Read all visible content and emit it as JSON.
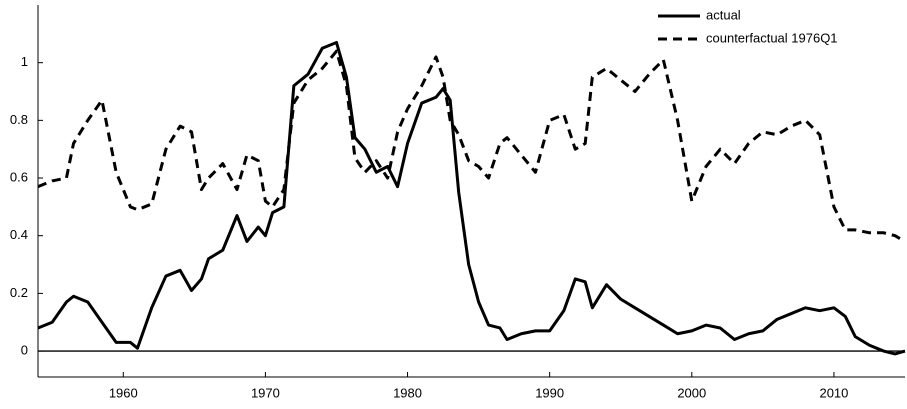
{
  "chart_data": {
    "type": "line",
    "x": [
      1954,
      1955,
      1956,
      1956.5,
      1957.5,
      1958.5,
      1959.5,
      1960.5,
      1961,
      1962,
      1963,
      1964,
      1964.8,
      1965.5,
      1966,
      1967,
      1968,
      1968.7,
      1969.5,
      1970,
      1970.5,
      1971.3,
      1972,
      1973,
      1974,
      1975,
      1975.7,
      1976.3,
      1977,
      1977.8,
      1978.6,
      1979.3,
      1980,
      1981,
      1982,
      1982.5,
      1983,
      1983.6,
      1984.3,
      1985,
      1985.7,
      1986.5,
      1987,
      1988,
      1989,
      1990,
      1991,
      1991.8,
      1992.5,
      1993,
      1994,
      1995,
      1996,
      1997,
      1998,
      1999,
      2000,
      2001,
      2002,
      2003,
      2004,
      2005,
      2006,
      2007,
      2008,
      2009,
      2010,
      2010.8,
      2011.5,
      2012.5,
      2013.5,
      2014.3,
      2015
    ],
    "series": [
      {
        "name": "actual",
        "color": "#000000",
        "dash": false,
        "values": [
          0.08,
          0.1,
          0.17,
          0.19,
          0.17,
          0.1,
          0.03,
          0.03,
          0.01,
          0.15,
          0.26,
          0.28,
          0.21,
          0.25,
          0.32,
          0.35,
          0.47,
          0.38,
          0.43,
          0.4,
          0.48,
          0.5,
          0.92,
          0.96,
          1.05,
          1.07,
          0.95,
          0.74,
          0.7,
          0.62,
          0.64,
          0.57,
          0.72,
          0.86,
          0.88,
          0.91,
          0.87,
          0.55,
          0.3,
          0.17,
          0.09,
          0.08,
          0.04,
          0.06,
          0.07,
          0.07,
          0.14,
          0.25,
          0.24,
          0.15,
          0.23,
          0.18,
          0.15,
          0.12,
          0.09,
          0.06,
          0.07,
          0.09,
          0.08,
          0.04,
          0.06,
          0.07,
          0.11,
          0.13,
          0.15,
          0.14,
          0.15,
          0.12,
          0.05,
          0.02,
          0.0,
          -0.01,
          0.0
        ]
      },
      {
        "name": "counterfactual 1976Q1",
        "color": "#000000",
        "dash": true,
        "values": [
          0.57,
          0.59,
          0.6,
          0.72,
          0.8,
          0.87,
          0.62,
          0.5,
          0.49,
          0.51,
          0.7,
          0.78,
          0.76,
          0.56,
          0.6,
          0.65,
          0.56,
          0.68,
          0.66,
          0.52,
          0.5,
          0.56,
          0.86,
          0.94,
          0.98,
          1.04,
          0.92,
          0.67,
          0.62,
          0.66,
          0.6,
          0.76,
          0.84,
          0.92,
          1.02,
          0.95,
          0.8,
          0.75,
          0.66,
          0.64,
          0.6,
          0.72,
          0.74,
          0.68,
          0.62,
          0.8,
          0.82,
          0.7,
          0.72,
          0.95,
          0.98,
          0.94,
          0.9,
          0.96,
          1.01,
          0.8,
          0.52,
          0.64,
          0.7,
          0.65,
          0.72,
          0.76,
          0.75,
          0.78,
          0.8,
          0.75,
          0.5,
          0.42,
          0.42,
          0.41,
          0.41,
          0.4,
          0.38
        ]
      }
    ],
    "xlim": [
      1954,
      2015
    ],
    "xticks": [
      1960,
      1970,
      1980,
      1990,
      2000,
      2010
    ],
    "ylim": [
      -0.09,
      1.2
    ],
    "yticks": [
      0,
      0.2,
      0.4,
      0.6,
      0.8,
      1
    ],
    "legend": "upper right",
    "grid": false
  }
}
